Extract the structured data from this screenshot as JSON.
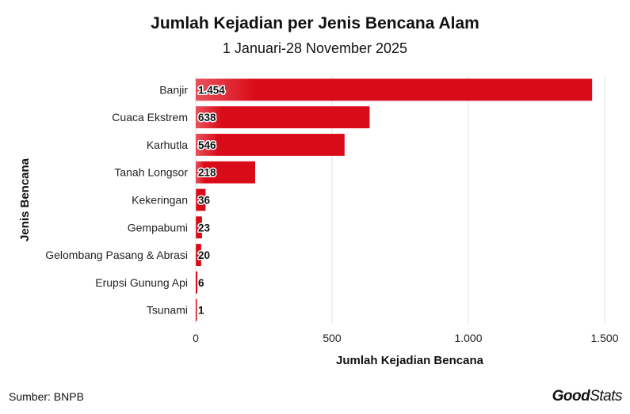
{
  "title": "Jumlah Kejadian per Jenis Bencana Alam",
  "subtitle": "1 Januari-28 November 2025",
  "source": "Sumber: BNPB",
  "logo": {
    "part1": "Good",
    "part2": "Stats"
  },
  "colors": {
    "bar": "#d90b18",
    "bar_light": "#e8525c",
    "grid": "#e6e6e6"
  },
  "chart_data": {
    "type": "bar",
    "orientation": "horizontal",
    "categories": [
      "Banjir",
      "Cuaca Ekstrem",
      "Karhutla",
      "Tanah Longsor",
      "Kekeringan",
      "Gempabumi",
      "Gelombang Pasang & Abrasi",
      "Erupsi Gunung Api",
      "Tsunami"
    ],
    "values": [
      1454,
      638,
      546,
      218,
      36,
      23,
      20,
      6,
      1
    ],
    "value_labels": [
      "1.454",
      "638",
      "546",
      "218",
      "36",
      "23",
      "20",
      "6",
      "1"
    ],
    "xlabel": "Jumlah Kejadian Bencana",
    "ylabel": "Jenis Bencana",
    "xlim": [
      0,
      1500
    ],
    "xticks": [
      0,
      500,
      1000,
      1500
    ],
    "xtick_labels": [
      "0",
      "500",
      "1.000",
      "1.500"
    ],
    "grid": true
  }
}
